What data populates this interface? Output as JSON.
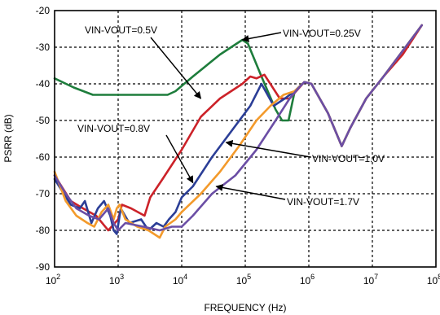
{
  "chart_data": {
    "type": "line",
    "title": "",
    "xlabel": "FREQUENCY (Hz)",
    "ylabel": "PSRR (dB)",
    "xscale": "log",
    "xlim": [
      100,
      80000000
    ],
    "ylim": [
      -90,
      -20
    ],
    "grid": true,
    "x_ticks": [
      {
        "base": "10",
        "exp": "2",
        "value": 100
      },
      {
        "base": "10",
        "exp": "3",
        "value": 1000
      },
      {
        "base": "10",
        "exp": "4",
        "value": 10000
      },
      {
        "base": "10",
        "exp": "5",
        "value": 100000
      },
      {
        "base": "10",
        "exp": "6",
        "value": 1000000
      },
      {
        "base": "10",
        "exp": "7",
        "value": 10000000
      },
      {
        "base": "10",
        "exp": "8",
        "value": 100000000
      }
    ],
    "y_ticks": [
      "-20",
      "-30",
      "-40",
      "-50",
      "-60",
      "-70",
      "-80",
      "-90"
    ],
    "series": [
      {
        "name": "VIN-VOUT=0.25V",
        "color": "#1e7d3c",
        "points": [
          [
            100,
            -38.5
          ],
          [
            200,
            -41
          ],
          [
            400,
            -43
          ],
          [
            1000,
            -43
          ],
          [
            3000,
            -43
          ],
          [
            6000,
            -43
          ],
          [
            8000,
            -42
          ],
          [
            15000,
            -38
          ],
          [
            40000,
            -32
          ],
          [
            90000,
            -28
          ],
          [
            110000,
            -29
          ],
          [
            180000,
            -38
          ],
          [
            300000,
            -47
          ],
          [
            380000,
            -50
          ],
          [
            480000,
            -50
          ],
          [
            600000,
            -42
          ],
          [
            850000,
            -39.5
          ],
          [
            1100000,
            -40
          ],
          [
            2000000,
            -48
          ],
          [
            3300000,
            -57
          ],
          [
            4500000,
            -52
          ],
          [
            8000000,
            -44
          ],
          [
            15000000,
            -38
          ],
          [
            30000000,
            -31
          ],
          [
            60000000,
            -24
          ]
        ]
      },
      {
        "name": "VIN-VOUT=0.5V",
        "color": "#cc2229",
        "points": [
          [
            100,
            -65
          ],
          [
            180,
            -72
          ],
          [
            280,
            -74
          ],
          [
            450,
            -76
          ],
          [
            700,
            -80
          ],
          [
            1000,
            -77
          ],
          [
            1150,
            -73
          ],
          [
            1600,
            -74
          ],
          [
            2600,
            -76
          ],
          [
            3200,
            -71
          ],
          [
            5000,
            -66
          ],
          [
            10000,
            -58
          ],
          [
            20000,
            -49
          ],
          [
            40000,
            -44
          ],
          [
            90000,
            -40
          ],
          [
            120000,
            -38
          ],
          [
            150000,
            -38.5
          ],
          [
            200000,
            -37.5
          ],
          [
            350000,
            -44
          ],
          [
            500000,
            -44
          ],
          [
            850000,
            -39.5
          ],
          [
            1100000,
            -40
          ],
          [
            2000000,
            -48
          ],
          [
            3300000,
            -57
          ],
          [
            4500000,
            -52
          ],
          [
            8000000,
            -44
          ],
          [
            15000000,
            -38
          ],
          [
            30000000,
            -32
          ],
          [
            60000000,
            -24
          ]
        ]
      },
      {
        "name": "VIN-VOUT=0.8V",
        "color": "#2b3e97",
        "points": [
          [
            100,
            -66
          ],
          [
            180,
            -73
          ],
          [
            250,
            -74
          ],
          [
            300,
            -72
          ],
          [
            380,
            -78
          ],
          [
            480,
            -74
          ],
          [
            600,
            -72
          ],
          [
            750,
            -76
          ],
          [
            850,
            -80
          ],
          [
            950,
            -81
          ],
          [
            1100,
            -74
          ],
          [
            1500,
            -78
          ],
          [
            2300,
            -77
          ],
          [
            3000,
            -80
          ],
          [
            4000,
            -78
          ],
          [
            5200,
            -79
          ],
          [
            6300,
            -77
          ],
          [
            8000,
            -75
          ],
          [
            10000,
            -71
          ],
          [
            15000,
            -68
          ],
          [
            30000,
            -60
          ],
          [
            60000,
            -53
          ],
          [
            120000,
            -46
          ],
          [
            180000,
            -40
          ],
          [
            280000,
            -46
          ],
          [
            420000,
            -44
          ],
          [
            600000,
            -42
          ],
          [
            850000,
            -39.5
          ],
          [
            1100000,
            -40
          ],
          [
            2000000,
            -48
          ],
          [
            3300000,
            -57
          ],
          [
            4500000,
            -52
          ],
          [
            8000000,
            -44
          ],
          [
            15000000,
            -38
          ],
          [
            30000000,
            -31
          ],
          [
            60000000,
            -24
          ]
        ]
      },
      {
        "name": "VIN-VOUT=1.0V",
        "color": "#f39a2b",
        "points": [
          [
            100,
            -64
          ],
          [
            150,
            -72
          ],
          [
            220,
            -76
          ],
          [
            330,
            -78
          ],
          [
            420,
            -79
          ],
          [
            550,
            -75
          ],
          [
            700,
            -73
          ],
          [
            850,
            -77
          ],
          [
            950,
            -74
          ],
          [
            1050,
            -73
          ],
          [
            1300,
            -77
          ],
          [
            2000,
            -79
          ],
          [
            3000,
            -80
          ],
          [
            4500,
            -82
          ],
          [
            5500,
            -79
          ],
          [
            8000,
            -77
          ],
          [
            10000,
            -75
          ],
          [
            20000,
            -70
          ],
          [
            40000,
            -64
          ],
          [
            80000,
            -57
          ],
          [
            150000,
            -50
          ],
          [
            250000,
            -46
          ],
          [
            400000,
            -43
          ],
          [
            600000,
            -42
          ],
          [
            850000,
            -39.5
          ],
          [
            1100000,
            -40
          ],
          [
            2000000,
            -48
          ],
          [
            3300000,
            -57
          ],
          [
            4500000,
            -52
          ],
          [
            8000000,
            -44
          ],
          [
            15000000,
            -38
          ],
          [
            30000000,
            -31
          ],
          [
            60000000,
            -24
          ]
        ]
      },
      {
        "name": "VIN-VOUT=1.7V",
        "color": "#6b4ea5",
        "points": [
          [
            100,
            -65
          ],
          [
            150,
            -70
          ],
          [
            220,
            -74
          ],
          [
            350,
            -76
          ],
          [
            500,
            -77
          ],
          [
            700,
            -74
          ],
          [
            850,
            -78
          ],
          [
            1000,
            -80
          ],
          [
            1300,
            -78
          ],
          [
            2500,
            -79
          ],
          [
            4500,
            -80
          ],
          [
            7000,
            -79
          ],
          [
            10000,
            -79
          ],
          [
            15000,
            -76
          ],
          [
            30000,
            -70
          ],
          [
            70000,
            -65
          ],
          [
            150000,
            -58
          ],
          [
            300000,
            -50
          ],
          [
            500000,
            -44
          ],
          [
            700000,
            -41
          ],
          [
            850000,
            -39.5
          ],
          [
            1100000,
            -40
          ],
          [
            2000000,
            -48
          ],
          [
            3300000,
            -57
          ],
          [
            4500000,
            -52
          ],
          [
            8000000,
            -44
          ],
          [
            15000000,
            -38
          ],
          [
            30000000,
            -31
          ],
          [
            60000000,
            -24
          ]
        ]
      }
    ],
    "annotations": [
      {
        "text": "VIN-VOUT=0.5V",
        "point_to": [
          20000,
          -44
        ]
      },
      {
        "text": "VIN-VOUT=0.25V",
        "point_to": [
          90000,
          -28
        ]
      },
      {
        "text": "VIN-VOUT=0.8V",
        "point_to": [
          15000,
          -67
        ]
      },
      {
        "text": "VIN-VOUT=1.0V",
        "point_to": [
          50000,
          -56
        ]
      },
      {
        "text": "VIN-VOUT=1.7V",
        "point_to": [
          35000,
          -68
        ]
      }
    ]
  }
}
